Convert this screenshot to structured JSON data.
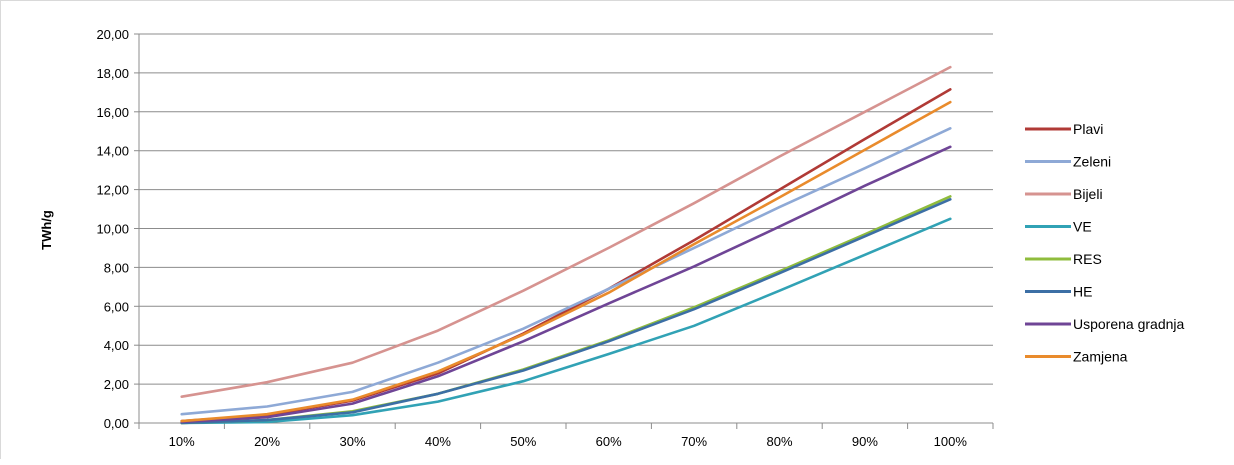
{
  "chart_data": {
    "type": "line",
    "title": "",
    "xlabel": "",
    "ylabel": "TWh/g",
    "ylim": [
      0,
      20
    ],
    "yticks": [
      "0,00",
      "2,00",
      "4,00",
      "6,00",
      "8,00",
      "10,00",
      "12,00",
      "14,00",
      "16,00",
      "18,00",
      "20,00"
    ],
    "categories": [
      "10%",
      "20%",
      "30%",
      "40%",
      "50%",
      "60%",
      "70%",
      "80%",
      "90%",
      "100%"
    ],
    "grid": true,
    "legend_position": "right",
    "series": [
      {
        "name": "Plavi",
        "color": "#b03a36",
        "values": [
          0.1,
          0.4,
          1.15,
          2.55,
          4.6,
          6.9,
          9.4,
          12.0,
          14.6,
          17.15
        ]
      },
      {
        "name": "Zeleni",
        "color": "#8ea9d6",
        "values": [
          0.45,
          0.85,
          1.6,
          3.1,
          4.85,
          6.9,
          9.0,
          11.1,
          13.1,
          15.15
        ]
      },
      {
        "name": "Bijeli",
        "color": "#d69390",
        "values": [
          1.35,
          2.1,
          3.1,
          4.75,
          6.8,
          9.0,
          11.3,
          13.7,
          16.0,
          18.3
        ]
      },
      {
        "name": "VE",
        "color": "#31a2b5",
        "values": [
          0.0,
          0.05,
          0.4,
          1.1,
          2.15,
          3.55,
          5.0,
          6.8,
          8.65,
          10.5
        ]
      },
      {
        "name": "RES",
        "color": "#8fbc3c",
        "values": [
          0.0,
          0.15,
          0.6,
          1.5,
          2.75,
          4.25,
          5.95,
          7.8,
          9.7,
          11.65
        ]
      },
      {
        "name": "HE",
        "color": "#3c6fa5",
        "values": [
          0.0,
          0.15,
          0.55,
          1.5,
          2.7,
          4.2,
          5.85,
          7.7,
          9.6,
          11.5
        ]
      },
      {
        "name": "Usporena gradnja",
        "color": "#6f4596",
        "values": [
          0.05,
          0.3,
          1.0,
          2.4,
          4.2,
          6.15,
          8.05,
          10.1,
          12.2,
          14.2
        ]
      },
      {
        "name": "Zamjena",
        "color": "#e98b2c",
        "values": [
          0.1,
          0.45,
          1.2,
          2.65,
          4.55,
          6.7,
          9.2,
          11.6,
          14.05,
          16.5
        ]
      }
    ]
  }
}
